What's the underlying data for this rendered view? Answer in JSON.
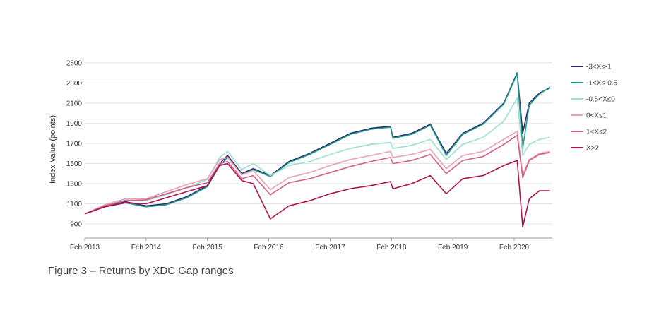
{
  "caption": "Figure 3 – Returns by XDC Gap ranges",
  "chart_data": {
    "type": "line",
    "title": "",
    "xlabel": "",
    "ylabel": "Index Value (points)",
    "ylim": [
      760,
      2520
    ],
    "xlim": [
      "2013-02-01",
      "2020-09-15"
    ],
    "yticks": [
      900,
      1100,
      1300,
      1500,
      1700,
      1900,
      2100,
      2300,
      2500
    ],
    "xticks": [
      "2013-02-01",
      "2014-02-01",
      "2015-02-01",
      "2016-02-01",
      "2017-02-01",
      "2018-02-01",
      "2019-02-01",
      "2020-02-01"
    ],
    "xtick_labels": [
      "Feb 2013",
      "Feb 2014",
      "Feb 2015",
      "Feb 2016",
      "Feb 2017",
      "Feb 2018",
      "Feb 2019",
      "Feb 2020"
    ],
    "grid": "horizontal",
    "legend_position": "right",
    "series": [
      {
        "name": "-3<X≤-1",
        "color": "#2e2a6e",
        "x": [
          "2013-02-01",
          "2013-06-01",
          "2013-10-01",
          "2014-02-01",
          "2014-06-01",
          "2014-10-01",
          "2015-02-01",
          "2015-04-15",
          "2015-06-01",
          "2015-08-25",
          "2015-11-01",
          "2016-02-11",
          "2016-06-01",
          "2016-10-01",
          "2017-02-01",
          "2017-06-01",
          "2017-10-01",
          "2018-01-26",
          "2018-02-09",
          "2018-06-01",
          "2018-09-20",
          "2018-12-24",
          "2019-04-01",
          "2019-08-01",
          "2019-12-01",
          "2020-02-19",
          "2020-03-23",
          "2020-05-01",
          "2020-07-01",
          "2020-09-01"
        ],
        "y": [
          1000,
          1080,
          1120,
          1080,
          1100,
          1170,
          1280,
          1500,
          1580,
          1400,
          1450,
          1380,
          1520,
          1600,
          1700,
          1800,
          1850,
          1870,
          1760,
          1800,
          1890,
          1600,
          1800,
          1900,
          2100,
          2400,
          1800,
          2100,
          2200,
          2250
        ]
      },
      {
        "name": "-1<X≤-0.5",
        "color": "#1f9b8a",
        "x": [
          "2013-02-01",
          "2013-06-01",
          "2013-10-01",
          "2014-02-01",
          "2014-06-01",
          "2014-10-01",
          "2015-02-01",
          "2015-04-15",
          "2015-06-01",
          "2015-08-25",
          "2015-11-01",
          "2016-02-11",
          "2016-06-01",
          "2016-10-01",
          "2017-02-01",
          "2017-06-01",
          "2017-10-01",
          "2018-01-26",
          "2018-02-09",
          "2018-06-01",
          "2018-09-20",
          "2018-12-24",
          "2019-04-01",
          "2019-08-01",
          "2019-12-01",
          "2020-02-19",
          "2020-03-23",
          "2020-05-01",
          "2020-07-01",
          "2020-09-01"
        ],
        "y": [
          1000,
          1070,
          1110,
          1070,
          1090,
          1160,
          1270,
          1480,
          1560,
          1390,
          1440,
          1370,
          1510,
          1590,
          1690,
          1790,
          1840,
          1860,
          1750,
          1790,
          1880,
          1580,
          1790,
          1890,
          2090,
          2390,
          1650,
          2080,
          2190,
          2260
        ]
      },
      {
        "name": "-0.5<X≤0",
        "color": "#9be0cf",
        "x": [
          "2013-02-01",
          "2013-06-01",
          "2013-10-01",
          "2014-02-01",
          "2014-06-01",
          "2014-10-01",
          "2015-02-01",
          "2015-04-15",
          "2015-06-01",
          "2015-08-25",
          "2015-11-01",
          "2016-02-11",
          "2016-06-01",
          "2016-10-01",
          "2017-02-01",
          "2017-06-01",
          "2017-10-01",
          "2018-01-26",
          "2018-02-09",
          "2018-06-01",
          "2018-09-20",
          "2018-12-24",
          "2019-04-01",
          "2019-08-01",
          "2019-12-01",
          "2020-02-19",
          "2020-03-23",
          "2020-05-01",
          "2020-07-01",
          "2020-09-01"
        ],
        "y": [
          1000,
          1090,
          1140,
          1130,
          1190,
          1260,
          1340,
          1560,
          1620,
          1440,
          1500,
          1380,
          1480,
          1520,
          1590,
          1650,
          1690,
          1710,
          1650,
          1680,
          1740,
          1540,
          1690,
          1760,
          1920,
          2150,
          1580,
          1690,
          1740,
          1760
        ]
      },
      {
        "name": "0<X≤1",
        "color": "#e8a0b4",
        "x": [
          "2013-02-01",
          "2013-06-01",
          "2013-10-01",
          "2014-02-01",
          "2014-06-01",
          "2014-10-01",
          "2015-02-01",
          "2015-04-15",
          "2015-06-01",
          "2015-08-25",
          "2015-11-01",
          "2016-02-11",
          "2016-06-01",
          "2016-10-01",
          "2017-02-01",
          "2017-06-01",
          "2017-10-01",
          "2018-01-26",
          "2018-02-09",
          "2018-06-01",
          "2018-09-20",
          "2018-12-24",
          "2019-04-01",
          "2019-08-01",
          "2019-12-01",
          "2020-02-19",
          "2020-03-23",
          "2020-05-01",
          "2020-07-01",
          "2020-09-01"
        ],
        "y": [
          1000,
          1090,
          1150,
          1150,
          1220,
          1290,
          1350,
          1540,
          1560,
          1390,
          1430,
          1240,
          1360,
          1410,
          1480,
          1540,
          1580,
          1620,
          1560,
          1590,
          1640,
          1450,
          1580,
          1620,
          1740,
          1820,
          1390,
          1540,
          1600,
          1620
        ]
      },
      {
        "name": "1<X≤2",
        "color": "#d35d8a",
        "x": [
          "2013-02-01",
          "2013-06-01",
          "2013-10-01",
          "2014-02-01",
          "2014-06-01",
          "2014-10-01",
          "2015-02-01",
          "2015-04-15",
          "2015-06-01",
          "2015-08-25",
          "2015-11-01",
          "2016-02-11",
          "2016-06-01",
          "2016-10-01",
          "2017-02-01",
          "2017-06-01",
          "2017-10-01",
          "2018-01-26",
          "2018-02-09",
          "2018-06-01",
          "2018-09-20",
          "2018-12-24",
          "2019-04-01",
          "2019-08-01",
          "2019-12-01",
          "2020-02-19",
          "2020-03-23",
          "2020-05-01",
          "2020-07-01",
          "2020-09-01"
        ],
        "y": [
          1000,
          1080,
          1130,
          1140,
          1200,
          1260,
          1310,
          1500,
          1520,
          1350,
          1380,
          1190,
          1310,
          1350,
          1410,
          1470,
          1520,
          1560,
          1500,
          1530,
          1590,
          1400,
          1530,
          1570,
          1690,
          1780,
          1360,
          1530,
          1590,
          1610
        ]
      },
      {
        "name": "X>2",
        "color": "#b0124f",
        "x": [
          "2013-02-01",
          "2013-06-01",
          "2013-10-01",
          "2014-02-01",
          "2014-06-01",
          "2014-10-01",
          "2015-02-01",
          "2015-04-15",
          "2015-06-01",
          "2015-08-25",
          "2015-11-01",
          "2016-02-11",
          "2016-06-01",
          "2016-10-01",
          "2017-02-01",
          "2017-06-01",
          "2017-10-01",
          "2018-01-26",
          "2018-02-09",
          "2018-06-01",
          "2018-09-20",
          "2018-12-24",
          "2019-04-01",
          "2019-08-01",
          "2019-12-01",
          "2020-02-19",
          "2020-03-23",
          "2020-05-01",
          "2020-07-01",
          "2020-09-01"
        ],
        "y": [
          1000,
          1070,
          1110,
          1100,
          1160,
          1220,
          1280,
          1480,
          1500,
          1330,
          1300,
          950,
          1080,
          1130,
          1200,
          1250,
          1280,
          1320,
          1250,
          1300,
          1380,
          1200,
          1350,
          1380,
          1480,
          1530,
          870,
          1150,
          1230,
          1230
        ]
      }
    ]
  }
}
